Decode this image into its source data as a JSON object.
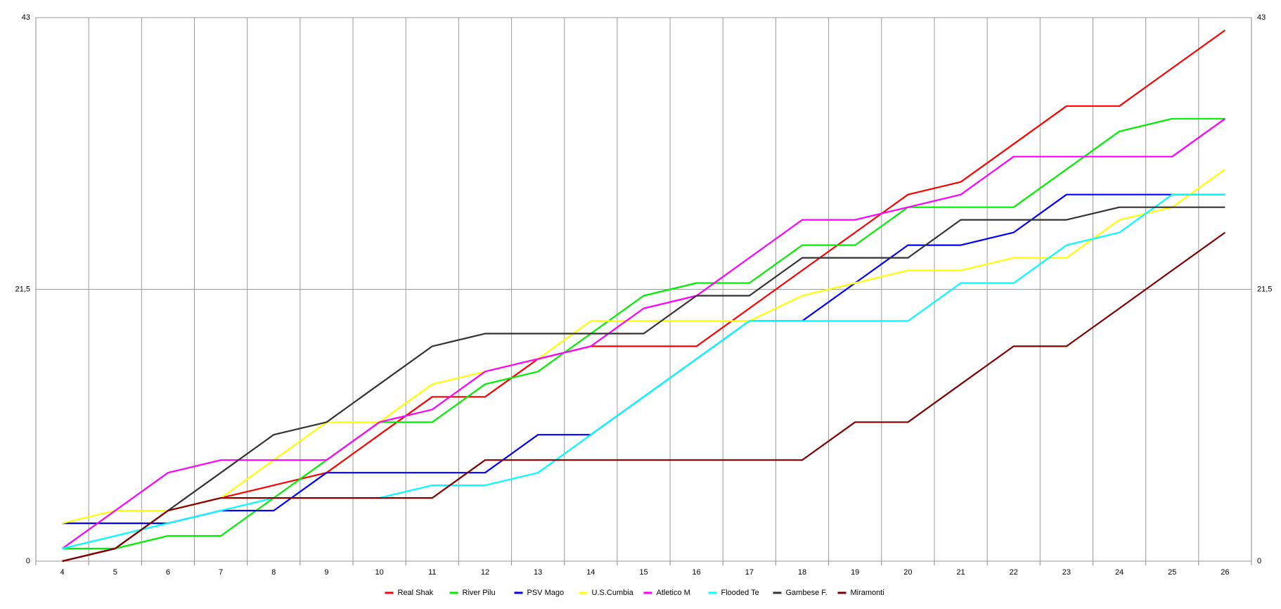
{
  "chart_data": {
    "type": "line",
    "categories": [
      "4",
      "5",
      "6",
      "7",
      "8",
      "9",
      "10",
      "11",
      "12",
      "13",
      "14",
      "15",
      "16",
      "17",
      "18",
      "19",
      "20",
      "21",
      "22",
      "23",
      "24",
      "25",
      "26"
    ],
    "ylim": [
      0,
      43
    ],
    "yticks": [
      0,
      {
        "value": 21.5,
        "label": "21,5"
      },
      43
    ],
    "grid": true,
    "legend": "bottom",
    "series": [
      {
        "name": "Real Shak",
        "color": "#ff0000",
        "values": [
          0,
          1,
          4,
          5,
          6,
          7,
          10,
          13,
          13,
          16,
          17,
          17,
          17,
          20,
          23,
          26,
          29,
          30,
          33,
          36,
          36,
          39,
          42
        ]
      },
      {
        "name": "River Pilu",
        "color": "#00ee00",
        "values": [
          1,
          1,
          2,
          2,
          5,
          8,
          11,
          11,
          14,
          15,
          18,
          21,
          22,
          22,
          25,
          25,
          28,
          28,
          28,
          31,
          34,
          35,
          35
        ]
      },
      {
        "name": "PSV Mago",
        "color": "#0000ff",
        "values": [
          3,
          3,
          3,
          4,
          4,
          7,
          7,
          7,
          7,
          10,
          10,
          13,
          16,
          19,
          19,
          22,
          25,
          25,
          26,
          29,
          29,
          29,
          29
        ]
      },
      {
        "name": "U.S.Cumbia",
        "color": "#ffff00",
        "values": [
          3,
          4,
          4,
          5,
          8,
          11,
          11,
          14,
          15,
          16,
          19,
          19,
          19,
          19,
          21,
          22,
          23,
          23,
          24,
          24,
          27,
          28,
          31
        ]
      },
      {
        "name": "Atletico M",
        "color": "#ff00ff",
        "values": [
          1,
          4,
          7,
          8,
          8,
          8,
          11,
          12,
          15,
          16,
          17,
          20,
          21,
          24,
          27,
          27,
          28,
          29,
          32,
          32,
          32,
          32,
          35
        ]
      },
      {
        "name": "Flooded Te",
        "color": "#00ffff",
        "values": [
          1,
          2,
          3,
          4,
          5,
          5,
          5,
          6,
          6,
          7,
          10,
          13,
          16,
          19,
          19,
          19,
          19,
          22,
          22,
          25,
          26,
          29,
          29
        ]
      },
      {
        "name": "Gambese F.",
        "color": "#333333",
        "values": [
          0,
          1,
          4,
          7,
          10,
          11,
          14,
          17,
          18,
          18,
          18,
          18,
          21,
          21,
          24,
          24,
          24,
          27,
          27,
          27,
          28,
          28,
          28
        ]
      },
      {
        "name": "Miramonti",
        "color": "#800000",
        "values": [
          0,
          1,
          4,
          5,
          5,
          5,
          5,
          5,
          8,
          8,
          8,
          8,
          8,
          8,
          8,
          11,
          11,
          14,
          17,
          17,
          20,
          23,
          26
        ]
      }
    ]
  }
}
